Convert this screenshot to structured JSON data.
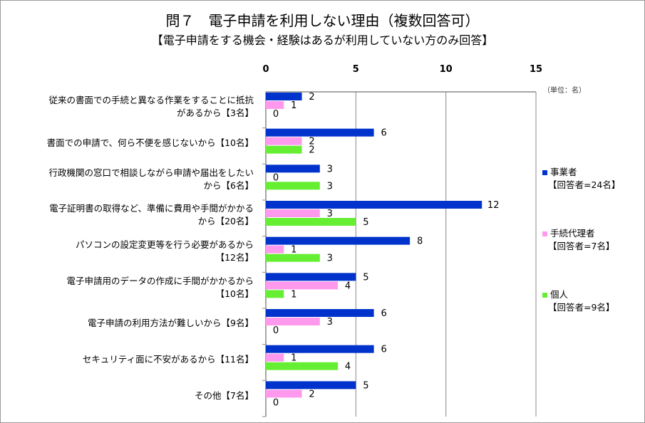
{
  "chart_data": {
    "type": "bar",
    "orientation": "horizontal",
    "title": "問７　電子申請を利用しない理由（複数回答可）",
    "subtitle": "【電子申請をする機会・経験はあるが利用していない方のみ回答】",
    "unit_label": "（単位：名）",
    "xlim": [
      0,
      15
    ],
    "xticks": [
      "0",
      "5",
      "10",
      "15"
    ],
    "categories": [
      [
        "従来の書面での手続と異なる作業をすることに抵抗",
        "があるから【3名】"
      ],
      [
        "書面での申請で、何ら不便を感じないから【10名】"
      ],
      [
        "行政機関の窓口で相談しながら申請や届出をしたい",
        "から【6名】"
      ],
      [
        "電子証明書の取得など、準備に費用や手間がかかる",
        "から【20名】"
      ],
      [
        "パソコンの設定変更等を行う必要があるから",
        "【12名】"
      ],
      [
        "電子申請用のデータの作成に手間がかかるから",
        "【10名】"
      ],
      [
        "電子申請の利用方法が難しいから【9名】"
      ],
      [
        "セキュリティ面に不安があるから【11名】"
      ],
      [
        "その他【7名】"
      ]
    ],
    "series": [
      {
        "name": "事業者",
        "sub": "【回答者=24名】",
        "color": "#0033cc",
        "values": [
          2,
          6,
          3,
          12,
          8,
          5,
          6,
          6,
          5
        ]
      },
      {
        "name": "手続代理者",
        "sub": "【回答者=7名】",
        "color": "#ff99ee",
        "values": [
          1,
          2,
          0,
          3,
          1,
          4,
          3,
          1,
          2
        ]
      },
      {
        "name": "個人",
        "sub": "【回答者=9名】",
        "color": "#66ee33",
        "values": [
          0,
          2,
          3,
          5,
          3,
          1,
          0,
          4,
          0
        ]
      }
    ],
    "legend": "right"
  }
}
